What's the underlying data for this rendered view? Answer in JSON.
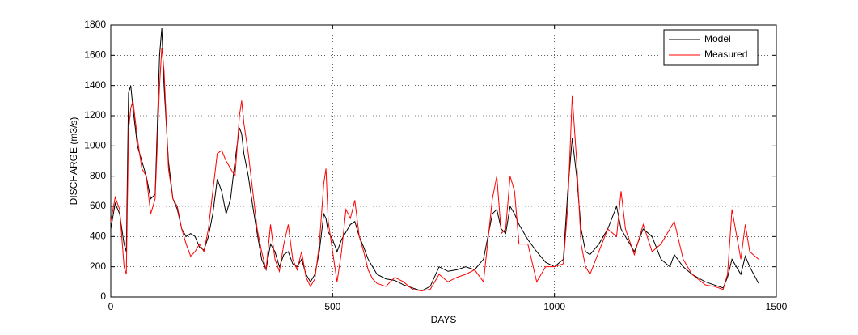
{
  "chart_data": {
    "type": "line",
    "xlabel": "DAYS",
    "ylabel": "DISCHARGE (m3/s)",
    "x": [
      0,
      10,
      20,
      30,
      35,
      40,
      45,
      50,
      60,
      70,
      80,
      90,
      100,
      110,
      115,
      120,
      130,
      140,
      150,
      160,
      170,
      180,
      190,
      200,
      210,
      220,
      230,
      240,
      250,
      260,
      270,
      280,
      290,
      295,
      300,
      310,
      320,
      330,
      340,
      350,
      360,
      370,
      380,
      390,
      400,
      410,
      420,
      430,
      440,
      450,
      460,
      470,
      480,
      485,
      490,
      500,
      510,
      520,
      530,
      540,
      550,
      560,
      570,
      580,
      590,
      600,
      620,
      640,
      660,
      680,
      700,
      720,
      740,
      760,
      780,
      800,
      820,
      840,
      860,
      870,
      880,
      890,
      900,
      910,
      920,
      940,
      960,
      980,
      1000,
      1020,
      1030,
      1040,
      1050,
      1060,
      1070,
      1080,
      1100,
      1120,
      1140,
      1150,
      1160,
      1180,
      1200,
      1220,
      1240,
      1260,
      1270,
      1290,
      1310,
      1340,
      1360,
      1380,
      1390,
      1400,
      1420,
      1430,
      1440,
      1460
    ],
    "series": [
      {
        "name": "Model",
        "color": "#000000",
        "values": [
          450,
          620,
          550,
          350,
          300,
          1350,
          1400,
          1250,
          1000,
          900,
          800,
          650,
          680,
          1600,
          1780,
          1400,
          900,
          650,
          580,
          450,
          400,
          420,
          400,
          330,
          310,
          400,
          550,
          780,
          700,
          550,
          650,
          900,
          1120,
          1080,
          950,
          800,
          600,
          420,
          250,
          180,
          350,
          300,
          200,
          280,
          300,
          220,
          200,
          250,
          150,
          100,
          150,
          300,
          550,
          520,
          430,
          380,
          300,
          380,
          430,
          480,
          500,
          400,
          330,
          250,
          200,
          150,
          120,
          110,
          80,
          60,
          40,
          70,
          200,
          170,
          180,
          200,
          180,
          250,
          550,
          580,
          450,
          420,
          600,
          550,
          480,
          380,
          300,
          230,
          200,
          250,
          700,
          1050,
          800,
          450,
          300,
          280,
          350,
          450,
          600,
          450,
          400,
          300,
          450,
          400,
          250,
          200,
          280,
          200,
          150,
          100,
          80,
          60,
          130,
          250,
          150,
          270,
          200,
          90
        ]
      },
      {
        "name": "Measured",
        "color": "#ff0000",
        "values": [
          500,
          660,
          580,
          200,
          150,
          1100,
          1250,
          1300,
          1050,
          850,
          800,
          550,
          650,
          1400,
          1650,
          1500,
          850,
          650,
          600,
          450,
          350,
          270,
          300,
          350,
          300,
          450,
          700,
          950,
          970,
          900,
          850,
          800,
          1200,
          1300,
          1150,
          950,
          700,
          450,
          300,
          180,
          480,
          250,
          170,
          350,
          480,
          250,
          180,
          300,
          130,
          70,
          120,
          350,
          750,
          850,
          500,
          300,
          100,
          300,
          580,
          520,
          640,
          400,
          300,
          180,
          120,
          90,
          70,
          130,
          100,
          50,
          40,
          50,
          150,
          100,
          130,
          150,
          180,
          100,
          650,
          800,
          420,
          450,
          800,
          700,
          350,
          350,
          100,
          200,
          200,
          220,
          600,
          1330,
          900,
          350,
          200,
          150,
          300,
          450,
          400,
          700,
          450,
          280,
          480,
          300,
          350,
          450,
          500,
          250,
          150,
          80,
          70,
          50,
          150,
          580,
          250,
          480,
          300,
          250
        ]
      }
    ],
    "xlim": [
      0,
      1500
    ],
    "xticks": [
      0,
      500,
      1000,
      1500
    ],
    "ylim": [
      0,
      1800
    ],
    "yticks": [
      0,
      200,
      400,
      600,
      800,
      1000,
      1200,
      1400,
      1600,
      1800
    ],
    "grid": true,
    "legend": "upper right"
  }
}
